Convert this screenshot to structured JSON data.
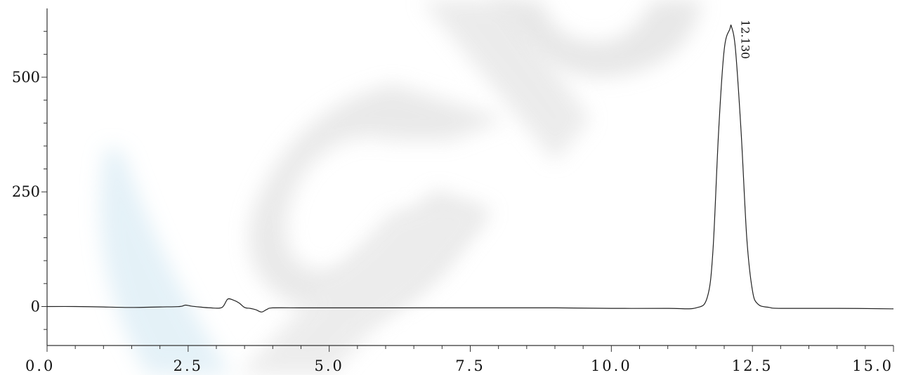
{
  "chart_data": {
    "type": "line",
    "title": "",
    "xlabel": "",
    "ylabel": "",
    "xlim": [
      0.0,
      15.0
    ],
    "ylim": [
      -85,
      650
    ],
    "grid": false,
    "x_ticks": [
      {
        "value": 0.0,
        "label": "0.0"
      },
      {
        "value": 2.5,
        "label": "2.5"
      },
      {
        "value": 5.0,
        "label": "5.0"
      },
      {
        "value": 7.5,
        "label": "7.5"
      },
      {
        "value": 10.0,
        "label": "10.0"
      },
      {
        "value": 12.5,
        "label": "12.5"
      },
      {
        "value": 15.0,
        "label": "15.0"
      }
    ],
    "y_ticks": [
      {
        "value": 0,
        "label": "0"
      },
      {
        "value": 250,
        "label": "250"
      },
      {
        "value": 500,
        "label": "500"
      }
    ],
    "series": [
      {
        "x": [
          0.0,
          0.5,
          1.0,
          1.5,
          2.0,
          2.35,
          2.45,
          2.55,
          2.7,
          2.9,
          3.1,
          3.2,
          3.3,
          3.4,
          3.5,
          3.6,
          3.7,
          3.8,
          3.9,
          4.0,
          4.5,
          5.0,
          6.0,
          7.0,
          8.0,
          9.0,
          10.0,
          11.0,
          11.5,
          11.7,
          11.8,
          11.9,
          12.0,
          12.1,
          12.13,
          12.2,
          12.3,
          12.4,
          12.5,
          12.6,
          12.8,
          13.0,
          14.0,
          15.0
        ],
        "y": [
          0,
          0,
          -1,
          -2,
          -1,
          0,
          3,
          1,
          -1,
          -3,
          -2,
          16,
          14,
          8,
          -2,
          -4,
          -7,
          -12,
          -6,
          -3,
          -3,
          -3,
          -3,
          -3,
          -3,
          -3,
          -4,
          -4,
          -3,
          20,
          120,
          380,
          560,
          605,
          610,
          560,
          380,
          150,
          35,
          5,
          -2,
          -4,
          -4,
          -5
        ]
      }
    ],
    "annotations": [
      {
        "x": 12.13,
        "y": 610,
        "text": "12.130"
      }
    ]
  },
  "colors": {
    "line": "#222222",
    "axis": "#333333",
    "watermark_gray": "#c8c8c8",
    "watermark_blue": "#cfe6f2"
  }
}
